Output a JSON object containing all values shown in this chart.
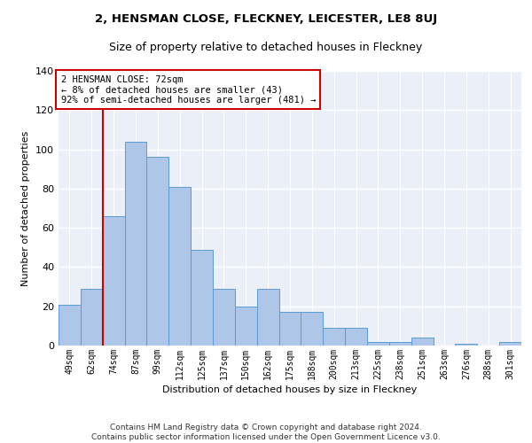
{
  "title": "2, HENSMAN CLOSE, FLECKNEY, LEICESTER, LE8 8UJ",
  "subtitle": "Size of property relative to detached houses in Fleckney",
  "xlabel": "Distribution of detached houses by size in Fleckney",
  "ylabel": "Number of detached properties",
  "bar_labels": [
    "49sqm",
    "62sqm",
    "74sqm",
    "87sqm",
    "99sqm",
    "112sqm",
    "125sqm",
    "137sqm",
    "150sqm",
    "162sqm",
    "175sqm",
    "188sqm",
    "200sqm",
    "213sqm",
    "225sqm",
    "238sqm",
    "251sqm",
    "263sqm",
    "276sqm",
    "288sqm",
    "301sqm"
  ],
  "bar_values": [
    21,
    29,
    66,
    104,
    96,
    81,
    49,
    29,
    20,
    29,
    17,
    17,
    9,
    9,
    2,
    2,
    4,
    0,
    1,
    0,
    2
  ],
  "bar_color": "#aec6e8",
  "bar_edge_color": "#5b9bd5",
  "bg_color": "#eaeff8",
  "grid_color": "#ffffff",
  "annotation_text": "2 HENSMAN CLOSE: 72sqm\n← 8% of detached houses are smaller (43)\n92% of semi-detached houses are larger (481) →",
  "annotation_box_color": "#ffffff",
  "annotation_box_edge": "#cc0000",
  "vline_color": "#cc0000",
  "ylim": [
    0,
    140
  ],
  "yticks": [
    0,
    20,
    40,
    60,
    80,
    100,
    120,
    140
  ],
  "footer": "Contains HM Land Registry data © Crown copyright and database right 2024.\nContains public sector information licensed under the Open Government Licence v3.0.",
  "title_fontsize": 9.5,
  "subtitle_fontsize": 9,
  "annotation_fontsize": 7.5,
  "footer_fontsize": 6.5,
  "ylabel_fontsize": 8,
  "xlabel_fontsize": 8,
  "tick_fontsize": 7
}
